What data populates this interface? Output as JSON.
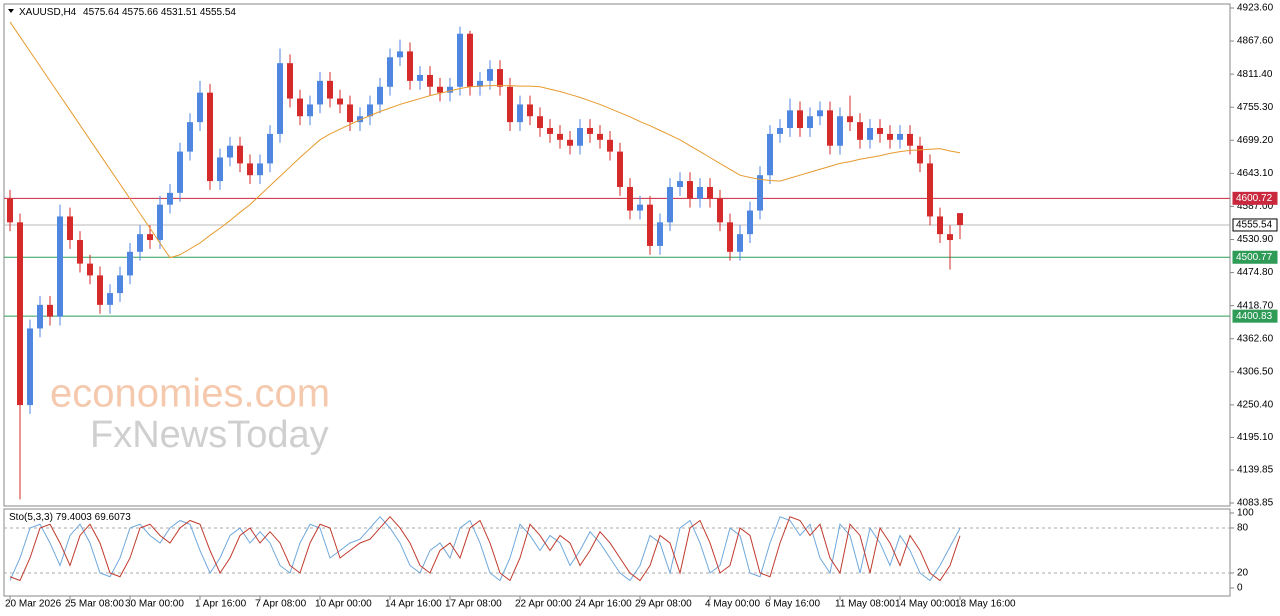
{
  "chart_data": [
    {
      "type": "candlestick",
      "title": "XAUUSD,H4",
      "categories": [
        "20 Mar 2026",
        null,
        null,
        null,
        null,
        null,
        "25 Mar 08:00",
        null,
        null,
        null,
        null,
        null,
        "30 Mar 00:00",
        null,
        null,
        null,
        null,
        null,
        null,
        "1 Apr 16:00",
        null,
        null,
        null,
        null,
        null,
        "7 Apr 08:00",
        null,
        null,
        null,
        null,
        null,
        "10 Apr 00:00",
        null,
        null,
        null,
        null,
        null,
        null,
        "14 Apr 16:00",
        null,
        null,
        null,
        null,
        null,
        "17 Apr 08:00",
        null,
        null,
        null,
        null,
        null,
        null,
        "22 Apr 00:00",
        null,
        null,
        null,
        null,
        null,
        "24 Apr 16:00",
        null,
        null,
        null,
        null,
        null,
        "29 Apr 08:00",
        null,
        null,
        null,
        null,
        null,
        null,
        "4 May 00:00",
        null,
        null,
        null,
        null,
        null,
        "6 May 16:00",
        null,
        null,
        null,
        null,
        null,
        null,
        "11 May 08:00",
        null,
        null,
        null,
        null,
        null,
        "14 May 00:00",
        null,
        null,
        null,
        null,
        null,
        "18 May 16:00"
      ],
      "open": [
        4600,
        4560,
        4250,
        4380,
        4420,
        4400,
        4570,
        4530,
        4490,
        4470,
        4420,
        4440,
        4470,
        4510,
        4540,
        4530,
        4590,
        4610,
        4680,
        4730,
        4780,
        4630,
        4670,
        4690,
        4660,
        4640,
        4660,
        4710,
        4830,
        4770,
        4740,
        4760,
        4800,
        4770,
        4760,
        4730,
        4740,
        4760,
        4790,
        4840,
        4850,
        4800,
        4810,
        4790,
        4780,
        4790,
        4880,
        4790,
        4800,
        4820,
        4790,
        4730,
        4760,
        4740,
        4720,
        4710,
        4700,
        4690,
        4720,
        4710,
        4700,
        4680,
        4620,
        4580,
        4590,
        4520,
        4560,
        4620,
        4630,
        4600,
        4620,
        4600,
        4560,
        4510,
        4540,
        4580,
        4640,
        4710,
        4720,
        4750,
        4720,
        4740,
        4750,
        4690,
        4740,
        4730,
        4700,
        4720,
        4710,
        4700,
        4710,
        4690,
        4660,
        4570,
        4540,
        4575.64
      ],
      "high": [
        4615,
        4575,
        4395,
        4435,
        4435,
        4590,
        4585,
        4545,
        4505,
        4485,
        4455,
        4485,
        4525,
        4555,
        4555,
        4605,
        4625,
        4695,
        4745,
        4800,
        4795,
        4685,
        4705,
        4705,
        4675,
        4675,
        4725,
        4855,
        4845,
        4785,
        4775,
        4815,
        4815,
        4785,
        4775,
        4755,
        4775,
        4805,
        4855,
        4870,
        4865,
        4825,
        4825,
        4805,
        4805,
        4892,
        4885,
        4815,
        4835,
        4835,
        4805,
        4775,
        4775,
        4755,
        4735,
        4725,
        4715,
        4735,
        4735,
        4725,
        4715,
        4695,
        4635,
        4605,
        4605,
        4575,
        4635,
        4645,
        4645,
        4635,
        4635,
        4615,
        4575,
        4555,
        4595,
        4655,
        4725,
        4735,
        4770,
        4765,
        4755,
        4765,
        4765,
        4755,
        4775,
        4745,
        4735,
        4735,
        4725,
        4725,
        4725,
        4705,
        4675,
        4585,
        4555,
        4575.66
      ],
      "low": [
        4545,
        4090,
        4235,
        4365,
        4385,
        4385,
        4515,
        4475,
        4455,
        4405,
        4405,
        4425,
        4455,
        4495,
        4515,
        4515,
        4575,
        4595,
        4665,
        4715,
        4615,
        4615,
        4655,
        4645,
        4625,
        4625,
        4645,
        4695,
        4755,
        4725,
        4725,
        4745,
        4755,
        4745,
        4715,
        4715,
        4725,
        4745,
        4775,
        4825,
        4785,
        4785,
        4775,
        4765,
        4765,
        4775,
        4775,
        4775,
        4785,
        4775,
        4715,
        4715,
        4725,
        4705,
        4695,
        4685,
        4675,
        4675,
        4695,
        4685,
        4665,
        4605,
        4565,
        4565,
        4505,
        4505,
        4545,
        4605,
        4585,
        4585,
        4585,
        4545,
        4495,
        4495,
        4525,
        4565,
        4625,
        4695,
        4705,
        4705,
        4705,
        4725,
        4675,
        4675,
        4715,
        4685,
        4685,
        4695,
        4685,
        4685,
        4675,
        4645,
        4555,
        4525,
        4480,
        4531.51
      ],
      "close": [
        4560,
        4250,
        4380,
        4420,
        4400,
        4570,
        4530,
        4490,
        4470,
        4420,
        4440,
        4470,
        4510,
        4540,
        4530,
        4590,
        4610,
        4680,
        4730,
        4780,
        4630,
        4670,
        4690,
        4660,
        4640,
        4660,
        4710,
        4830,
        4770,
        4740,
        4760,
        4800,
        4770,
        4760,
        4730,
        4740,
        4760,
        4790,
        4840,
        4850,
        4800,
        4810,
        4790,
        4780,
        4790,
        4880,
        4790,
        4800,
        4820,
        4790,
        4730,
        4760,
        4740,
        4720,
        4710,
        4700,
        4690,
        4720,
        4710,
        4700,
        4680,
        4620,
        4580,
        4590,
        4520,
        4560,
        4620,
        4630,
        4600,
        4620,
        4600,
        4560,
        4510,
        4540,
        4580,
        4640,
        4710,
        4720,
        4750,
        4720,
        4740,
        4750,
        4690,
        4740,
        4730,
        4700,
        4720,
        4710,
        4700,
        4710,
        4690,
        4660,
        4570,
        4540,
        4530,
        4555.54
      ],
      "up_color": "#4f86e0",
      "down_color": "#d42a2a",
      "overlay": {
        "color": "#e69a2e",
        "values": [
          4900,
          4875,
          4850,
          4825,
          4800,
          4775,
          4750,
          4725,
          4700,
          4675,
          4650,
          4625,
          4600,
          4575,
          4550,
          4525,
          4500,
          4505,
          4515,
          4525,
          4538,
          4550,
          4563,
          4577,
          4590,
          4606,
          4622,
          4638,
          4654,
          4670,
          4685,
          4700,
          4710,
          4718,
          4726,
          4734,
          4741,
          4748,
          4754,
          4760,
          4765,
          4770,
          4775,
          4779,
          4783,
          4787,
          4790,
          4791,
          4792,
          4792,
          4792,
          4791,
          4791,
          4790,
          4786,
          4782,
          4777,
          4772,
          4766,
          4760,
          4753,
          4746,
          4739,
          4731,
          4724,
          4716,
          4708,
          4700,
          4690,
          4680,
          4670,
          4660,
          4650,
          4640,
          4636,
          4633,
          4631,
          4630,
          4635,
          4640,
          4645,
          4650,
          4655,
          4660,
          4663,
          4667,
          4670,
          4673,
          4677,
          4680,
          4682,
          4683,
          4684,
          4685,
          4681,
          4678
        ]
      },
      "levels": [
        {
          "value": 4600.72,
          "color": "#c9283e"
        },
        {
          "value": 4500.77,
          "color": "#2e9b57"
        },
        {
          "value": 4400.83,
          "color": "#2e9b57"
        }
      ],
      "ylim": [
        4078.8,
        4930.4
      ],
      "yticks": [
        {
          "value": 4923.6,
          "label": "4923.60"
        },
        {
          "value": 4867.6,
          "label": "4867.60"
        },
        {
          "value": 4811.4,
          "label": "4811.40"
        },
        {
          "value": 4755.3,
          "label": "4755.30"
        },
        {
          "value": 4699.2,
          "label": "4699.20"
        },
        {
          "value": 4643.1,
          "label": "4643.10"
        },
        {
          "value": 4587,
          "label": "4587.00"
        },
        {
          "value": 4530.9,
          "label": "4530.90"
        },
        {
          "value": 4474.8,
          "label": "4474.80"
        },
        {
          "value": 4418.7,
          "label": "4418.70"
        },
        {
          "value": 4362.6,
          "label": "4362.60"
        },
        {
          "value": 4306.5,
          "label": "4306.50"
        },
        {
          "value": 4250.4,
          "label": "4250.40"
        },
        {
          "value": 4195.1,
          "label": "4195.10"
        },
        4139.85,
        4083.85
      ],
      "watermark": [
        "economies.com",
        "FxNewsToday"
      ]
    },
    {
      "type": "line",
      "title": "Sto(5,3,3)",
      "series": [
        {
          "color": "#6fa8dc",
          "values": [
            10,
            40,
            80,
            85,
            60,
            30,
            70,
            85,
            60,
            20,
            15,
            40,
            80,
            85,
            70,
            60,
            80,
            90,
            85,
            50,
            20,
            40,
            70,
            80,
            60,
            75,
            60,
            30,
            20,
            60,
            85,
            80,
            40,
            50,
            60,
            65,
            80,
            95,
            80,
            60,
            30,
            20,
            50,
            60,
            40,
            80,
            90,
            60,
            20,
            10,
            40,
            85,
            70,
            50,
            70,
            60,
            30,
            50,
            75,
            60,
            40,
            20,
            10,
            30,
            70,
            60,
            20,
            80,
            90,
            60,
            20,
            30,
            80,
            70,
            20,
            15,
            60,
            95,
            90,
            70,
            85,
            40,
            20,
            85,
            70,
            20,
            80,
            60,
            30,
            70,
            50,
            20,
            10,
            30,
            55,
            79.4003
          ]
        },
        {
          "color": "#c0392b",
          "values": [
            15,
            10,
            40,
            80,
            85,
            60,
            30,
            70,
            85,
            60,
            20,
            15,
            40,
            80,
            85,
            70,
            60,
            80,
            90,
            85,
            50,
            20,
            40,
            70,
            80,
            60,
            75,
            60,
            30,
            20,
            60,
            85,
            80,
            40,
            50,
            60,
            65,
            80,
            95,
            80,
            60,
            30,
            20,
            50,
            60,
            40,
            80,
            90,
            60,
            20,
            10,
            40,
            85,
            70,
            50,
            70,
            60,
            30,
            50,
            75,
            60,
            40,
            20,
            10,
            30,
            70,
            60,
            20,
            80,
            90,
            60,
            20,
            30,
            80,
            70,
            20,
            15,
            60,
            95,
            90,
            70,
            85,
            40,
            20,
            85,
            70,
            20,
            80,
            60,
            30,
            70,
            50,
            20,
            10,
            30,
            69.6073
          ]
        }
      ],
      "ylim": [
        -10.7,
        105.3
      ],
      "yticks": [
        100,
        80,
        20,
        0
      ],
      "dashed_levels": [
        80,
        20
      ]
    }
  ]
}
